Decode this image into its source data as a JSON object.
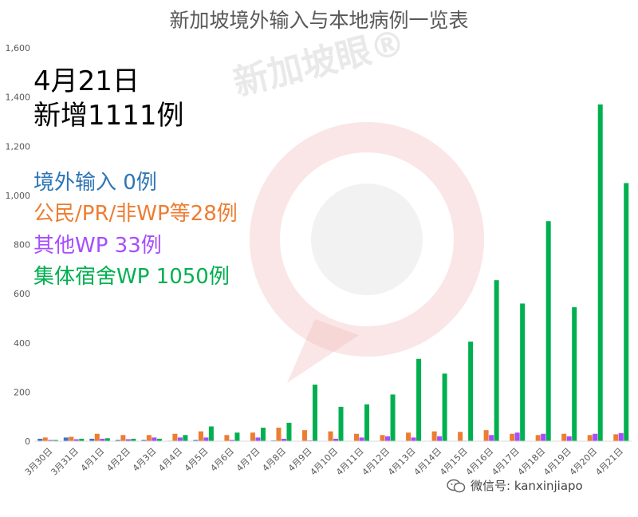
{
  "chart_data": {
    "type": "bar",
    "title": "新加坡境外输入与本地病例一览表",
    "yticks": [
      "0",
      "200",
      "400",
      "600",
      "800",
      "1,000",
      "1,200",
      "1,400",
      "1,600"
    ],
    "ylim": [
      0,
      1600
    ],
    "grid": false,
    "categories": [
      "3月30日",
      "3月31日",
      "4月1日",
      "4月2日",
      "4月3日",
      "4月4日",
      "4月5日",
      "4月6日",
      "4月7日",
      "4月8日",
      "4月9日",
      "4月10日",
      "4月11日",
      "4月12日",
      "4月13日",
      "4月14日",
      "4月15日",
      "4月16日",
      "4月17日",
      "4月18日",
      "4月19日",
      "4月20日",
      "4月21日"
    ],
    "series": [
      {
        "name": "境外输入",
        "color": "#4472c4",
        "values": [
          10,
          15,
          10,
          5,
          5,
          2,
          5,
          1,
          1,
          3,
          1,
          0,
          0,
          0,
          0,
          0,
          0,
          0,
          0,
          0,
          0,
          0,
          0
        ]
      },
      {
        "name": "公民/PR/非WP",
        "color": "#ed7d31",
        "values": [
          15,
          18,
          30,
          25,
          25,
          30,
          40,
          25,
          35,
          55,
          45,
          40,
          30,
          25,
          35,
          40,
          38,
          45,
          30,
          25,
          30,
          25,
          28
        ]
      },
      {
        "name": "其他WP",
        "color": "#a64dff",
        "values": [
          5,
          8,
          10,
          8,
          15,
          15,
          15,
          5,
          15,
          10,
          3,
          10,
          15,
          20,
          15,
          20,
          2,
          25,
          35,
          30,
          20,
          30,
          33
        ]
      },
      {
        "name": "集体宿舍WP",
        "color": "#00b050",
        "values": [
          5,
          10,
          12,
          10,
          10,
          25,
          60,
          35,
          55,
          75,
          230,
          140,
          150,
          190,
          335,
          275,
          405,
          655,
          560,
          895,
          545,
          1370,
          1050
        ]
      }
    ]
  },
  "overlay": {
    "date": "4月21日",
    "total": "新增1111例",
    "categories": [
      {
        "text": "境外输入 0例",
        "color": "#2e75b6"
      },
      {
        "text": "公民/PR/非WP等28例",
        "color": "#ed7d31"
      },
      {
        "text": "其他WP 33例",
        "color": "#a64dff"
      },
      {
        "text": "集体宿舍WP 1050例",
        "color": "#00b050"
      }
    ]
  },
  "watermark": {
    "text": "新加坡眼®"
  },
  "footer": {
    "wechat": "微信号: kanxinjiapo",
    "wechat_icon": "wechat-icon"
  }
}
